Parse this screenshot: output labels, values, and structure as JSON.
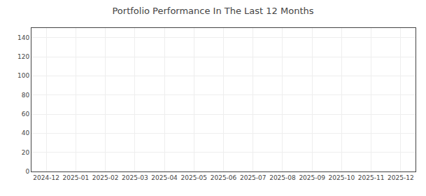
{
  "chart_data": {
    "type": "line",
    "title": "Portfolio Performance In The Last 12 Months",
    "categories": [
      "2024-12",
      "2025-01",
      "2025-02",
      "2025-03",
      "2025-04",
      "2025-05",
      "2025-06",
      "2025-07",
      "2025-08",
      "2025-09",
      "2025-10",
      "2025-11",
      "2025-12"
    ],
    "values": [
      null,
      null,
      null,
      null,
      null,
      null,
      null,
      null,
      null,
      null,
      null,
      null,
      null
    ],
    "ylim": [
      0,
      150
    ],
    "yticks": [
      0,
      20,
      40,
      60,
      80,
      100,
      120,
      140
    ],
    "grid": true
  }
}
